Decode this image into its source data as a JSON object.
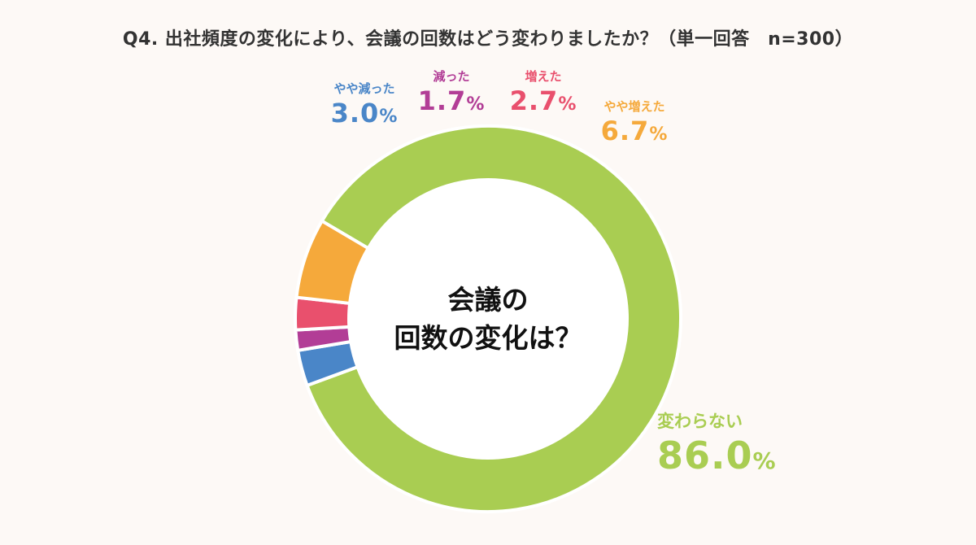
{
  "chart_data": {
    "type": "pie",
    "title": "Q4. 出社頻度の変化により、会議の回数はどう変わりましたか？（単一回答　n=300）",
    "center_label": [
      "会議の",
      "回数の変化は？"
    ],
    "unit": "%",
    "donut": true,
    "slices": [
      {
        "label": "変わらない",
        "value": 86.0,
        "display": "86.0",
        "color": "#a9cd52"
      },
      {
        "label": "やや減った",
        "value": 3.0,
        "display": "3.0",
        "color": "#4a86c8"
      },
      {
        "label": "減った",
        "value": 1.7,
        "display": "1.7",
        "color": "#b23d96"
      },
      {
        "label": "増えた",
        "value": 2.7,
        "display": "2.7",
        "color": "#e9506d"
      },
      {
        "label": "やや増えた",
        "value": 6.7,
        "display": "6.7",
        "color": "#f5a93b"
      }
    ]
  }
}
